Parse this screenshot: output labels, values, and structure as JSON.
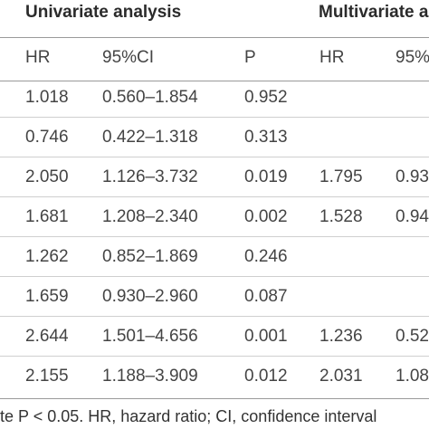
{
  "groups": {
    "univariate": "Univariate analysis",
    "multivariate": "Multivariate a"
  },
  "columns": {
    "hr_uni": "HR",
    "ci_uni": "95%CI",
    "p_uni": "P",
    "hr_multi": "HR",
    "ci_multi": "95%"
  },
  "rows": [
    {
      "hr": "1.018",
      "ci": "0.560–1.854",
      "p": "0.952",
      "hr_m": "",
      "ci_m": ""
    },
    {
      "hr": "0.746",
      "ci": "0.422–1.318",
      "p": "0.313",
      "hr_m": "",
      "ci_m": ""
    },
    {
      "hr": "2.050",
      "ci": "1.126–3.732",
      "p": "0.019",
      "hr_m": "1.795",
      "ci_m": "0.93"
    },
    {
      "hr": "1.681",
      "ci": "1.208–2.340",
      "p": "0.002",
      "hr_m": "1.528",
      "ci_m": "0.94"
    },
    {
      "hr": "1.262",
      "ci": "0.852–1.869",
      "p": "0.246",
      "hr_m": "",
      "ci_m": ""
    },
    {
      "hr": "1.659",
      "ci": "0.930–2.960",
      "p": "0.087",
      "hr_m": "",
      "ci_m": ""
    },
    {
      "hr": "2.644",
      "ci": "1.501–4.656",
      "p": "0.001",
      "hr_m": "1.236",
      "ci_m": "0.52"
    },
    {
      "hr": "2.155",
      "ci": "1.188–3.909",
      "p": "0.012",
      "hr_m": "2.031",
      "ci_m": "1.08"
    }
  ],
  "footnote": "te P < 0.05. HR, hazard ratio; CI, confidence interval"
}
